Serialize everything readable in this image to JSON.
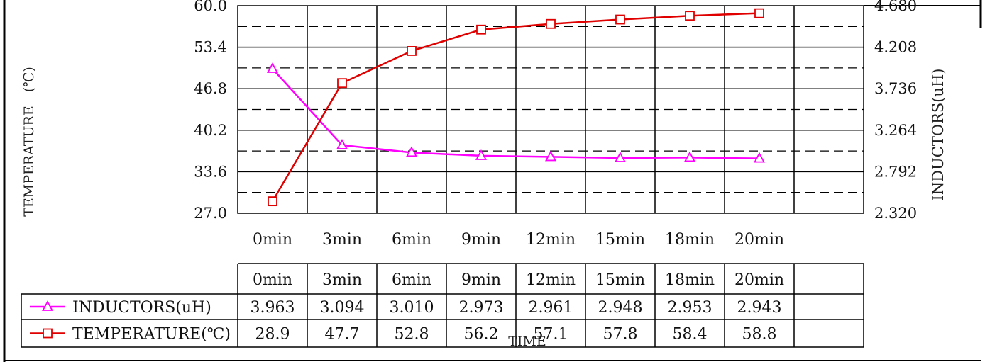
{
  "chart_data": {
    "type": "line",
    "x_label": "TIME",
    "categories": [
      "0min",
      "3min",
      "6min",
      "9min",
      "12min",
      "15min",
      "18min",
      "20min"
    ],
    "y_left": {
      "label": "TEMPERATURE　(℃)",
      "ticks": [
        "27.0",
        "33.6",
        "40.2",
        "46.8",
        "53.4",
        "60.0"
      ],
      "min": 27.0,
      "max": 60.0
    },
    "y_right": {
      "label": "INDUCTORS(uH)",
      "ticks": [
        "2.320",
        "2.792",
        "3.264",
        "3.736",
        "4.208",
        "4.680"
      ],
      "min": 2.32,
      "max": 4.68
    },
    "grid": true,
    "series": [
      {
        "name": "INDUCTORS(uH)",
        "axis": "right",
        "marker": "triangle",
        "color": "#ff00ff",
        "values": [
          3.963,
          3.094,
          3.01,
          2.973,
          2.961,
          2.948,
          2.953,
          2.943
        ],
        "labels": [
          "3.963",
          "3.094",
          "3.010",
          "2.973",
          "2.961",
          "2.948",
          "2.953",
          "2.943"
        ]
      },
      {
        "name": "TEMPERATURE(℃)",
        "axis": "left",
        "marker": "square",
        "color": "#e00000",
        "values": [
          28.9,
          47.7,
          52.8,
          56.2,
          57.1,
          57.8,
          58.4,
          58.8
        ],
        "labels": [
          "28.9",
          "47.7",
          "52.8",
          "56.2",
          "57.1",
          "57.8",
          "58.4",
          "58.8"
        ]
      }
    ]
  }
}
